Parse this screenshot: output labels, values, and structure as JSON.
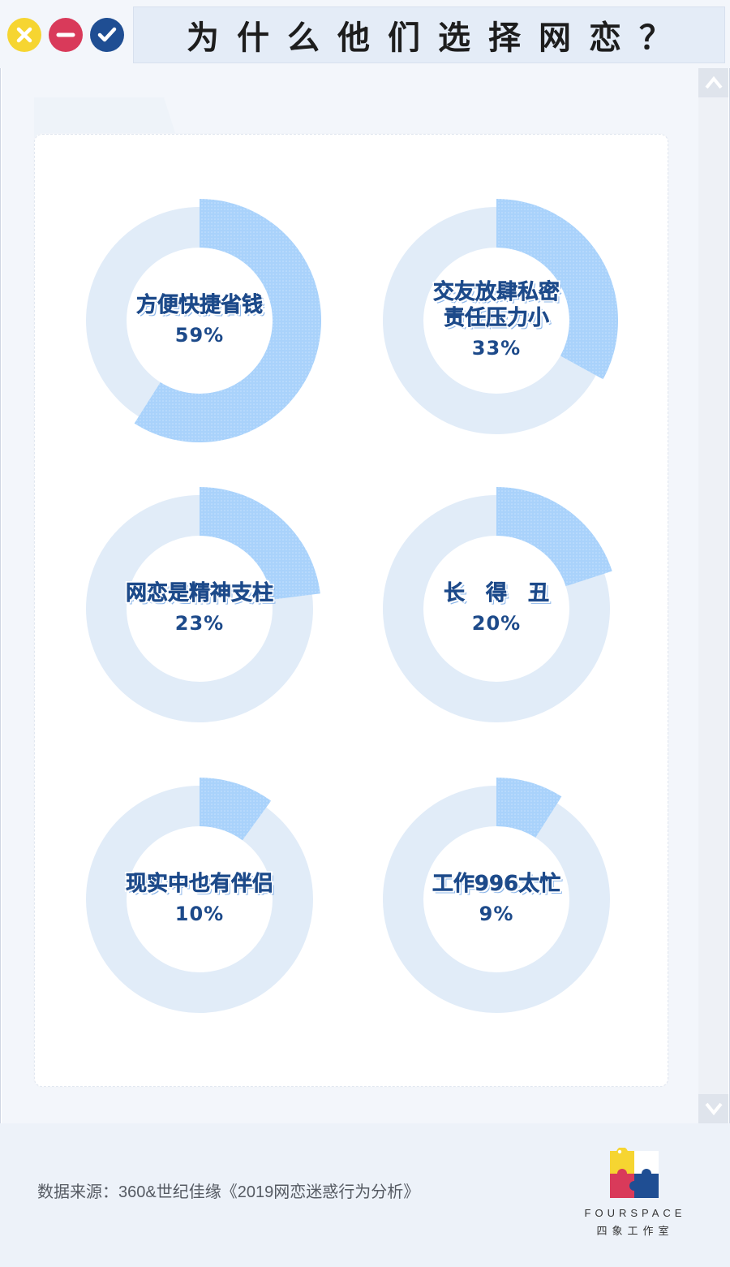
{
  "window_controls": [
    {
      "name": "close-icon",
      "color": "#f6d531"
    },
    {
      "name": "minimize-icon",
      "color": "#d93a5a"
    },
    {
      "name": "check-icon",
      "color": "#1f4e93"
    }
  ],
  "title": "为什么他们选择网恋？",
  "chart_data": [
    {
      "type": "pie",
      "label": "方便快捷省钱",
      "value": 59,
      "display": "59%"
    },
    {
      "type": "pie",
      "label": "交友放肆私密\n责任压力小",
      "value": 33,
      "display": "33%"
    },
    {
      "type": "pie",
      "label": "网恋是精神支柱",
      "value": 23,
      "display": "23%"
    },
    {
      "type": "pie",
      "label": "长　得　丑",
      "value": 20,
      "display": "20%"
    },
    {
      "type": "pie",
      "label": "现实中也有伴侣",
      "value": 10,
      "display": "10%"
    },
    {
      "type": "pie",
      "label": "工作996太忙",
      "value": 9,
      "display": "9%"
    }
  ],
  "colors": {
    "ring_track": "#e1ecf8",
    "ring_fill": "#a9d2fb",
    "text_dark": "#1d4a8a"
  },
  "source": "数据来源：360&世纪佳缘《2019网恋迷惑行为分析》",
  "logo": {
    "name": "FOURSPACE",
    "subtitle": "四象工作室"
  }
}
